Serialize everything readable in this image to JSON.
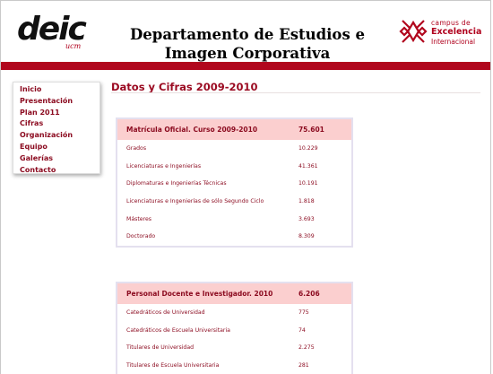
{
  "header": {
    "logo_text": "deic",
    "logo_sub": "ucm",
    "title": "Departamento de Estudios e Imagen Corporativa",
    "campus_line1": "campus de",
    "campus_line2": "Excelencia",
    "campus_line3": "Internacional"
  },
  "colors": {
    "accent": "#b1071d",
    "link": "#8b0a1f",
    "table_head": "#fbcfcf"
  },
  "nav": {
    "items": [
      "Inicio",
      "Presentación",
      "Plan 2011",
      "Cifras",
      "Organización",
      "Equipo",
      "Galerías",
      "Contacto"
    ]
  },
  "main": {
    "section_title": "Datos y Cifras 2009-2010",
    "tables": [
      {
        "head_label": "Matrícula Oficial. Curso 2009-2010",
        "head_value": "75.601",
        "rows": [
          [
            "Grados",
            "10.229"
          ],
          [
            "Licenciaturas e Ingenierías",
            "41.361"
          ],
          [
            "Diplomaturas e Ingenierías Técnicas",
            "10.191"
          ],
          [
            "Licenciaturas e Ingenierías de sólo Segundo Ciclo",
            "1.818"
          ],
          [
            "Másteres",
            "3.693"
          ],
          [
            "Doctorado",
            "8.309"
          ]
        ]
      },
      {
        "head_label": "Personal Docente e Investigador. 2010",
        "head_value": "6.206",
        "rows": [
          [
            "Catedráticos de Universidad",
            "775"
          ],
          [
            "Catedráticos de Escuela Universitaria",
            "74"
          ],
          [
            "Titulares de Universidad",
            "2.275"
          ],
          [
            "Titulares de Escuela Universitaria",
            "281"
          ]
        ]
      }
    ]
  }
}
